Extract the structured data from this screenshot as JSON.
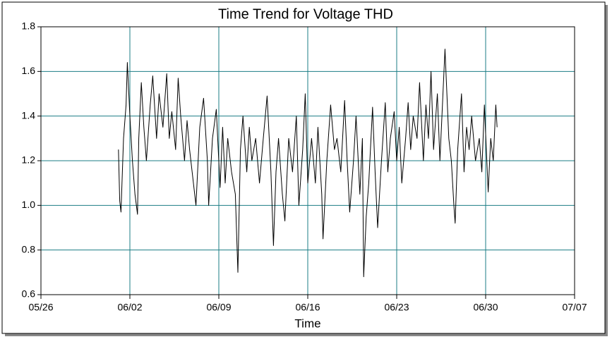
{
  "chart_data": {
    "type": "line",
    "title": "Time Trend for Voltage THD",
    "x_label": "Time",
    "color": "#000000",
    "grid": true,
    "grid_color": "#1b7d85",
    "xlim": [
      0,
      42
    ],
    "xticks": [
      {
        "value": 0,
        "label": "05/26"
      },
      {
        "value": 7,
        "label": "06/02"
      },
      {
        "value": 14,
        "label": "06/09"
      },
      {
        "value": 21,
        "label": "06/16"
      },
      {
        "value": 28,
        "label": "06/23"
      },
      {
        "value": 35,
        "label": "06/30"
      },
      {
        "value": 42,
        "label": "07/07"
      }
    ],
    "ylim": [
      0.6,
      1.8
    ],
    "yticks": [
      0.6,
      0.8,
      {
        "value": 1,
        "label": "1.0"
      },
      1.2,
      1.4,
      1.6,
      1.8
    ],
    "x": [
      6.1,
      6.2,
      6.3,
      6.5,
      6.7,
      6.8,
      7.0,
      7.2,
      7.4,
      7.6,
      7.7,
      7.9,
      8.1,
      8.3,
      8.6,
      8.8,
      9.1,
      9.3,
      9.6,
      9.9,
      10.1,
      10.3,
      10.6,
      10.8,
      11.0,
      11.3,
      11.5,
      11.7,
      11.9,
      12.2,
      12.5,
      12.8,
      13.1,
      13.2,
      13.5,
      13.8,
      14.1,
      14.3,
      14.5,
      14.7,
      15.0,
      15.3,
      15.5,
      15.7,
      15.9,
      16.2,
      16.4,
      16.6,
      16.9,
      17.2,
      17.5,
      17.8,
      18.1,
      18.3,
      18.5,
      18.7,
      19.0,
      19.2,
      19.5,
      19.8,
      20.1,
      20.3,
      20.6,
      20.8,
      21.0,
      21.3,
      21.6,
      21.8,
      22.1,
      22.2,
      22.5,
      22.8,
      23.1,
      23.3,
      23.6,
      23.9,
      24.1,
      24.3,
      24.6,
      24.8,
      25.1,
      25.3,
      25.4,
      25.6,
      25.8,
      26.1,
      26.3,
      26.5,
      26.8,
      27.1,
      27.3,
      27.5,
      27.8,
      28.0,
      28.2,
      28.4,
      28.7,
      28.9,
      29.1,
      29.3,
      29.6,
      29.8,
      30.1,
      30.3,
      30.5,
      30.7,
      30.9,
      31.2,
      31.4,
      31.6,
      31.8,
      32.1,
      32.3,
      32.5,
      32.6,
      32.8,
      33.1,
      33.3,
      33.5,
      33.7,
      33.9,
      34.2,
      34.5,
      34.7,
      34.9,
      35.2,
      35.4,
      35.6,
      35.8,
      35.9
    ],
    "values": [
      1.25,
      1.02,
      0.97,
      1.3,
      1.45,
      1.64,
      1.4,
      1.2,
      1.05,
      0.96,
      1.3,
      1.55,
      1.35,
      1.2,
      1.45,
      1.58,
      1.3,
      1.5,
      1.35,
      1.59,
      1.3,
      1.42,
      1.25,
      1.57,
      1.4,
      1.2,
      1.38,
      1.25,
      1.15,
      1.0,
      1.35,
      1.48,
      1.2,
      1.0,
      1.3,
      1.43,
      1.08,
      1.35,
      1.1,
      1.3,
      1.15,
      1.05,
      0.7,
      1.25,
      1.4,
      1.15,
      1.35,
      1.2,
      1.3,
      1.1,
      1.3,
      1.49,
      1.15,
      0.82,
      1.15,
      1.3,
      1.05,
      0.93,
      1.3,
      1.15,
      1.4,
      1.0,
      1.25,
      1.5,
      1.1,
      1.3,
      1.1,
      1.35,
      1.05,
      0.85,
      1.2,
      1.45,
      1.25,
      1.3,
      1.15,
      1.47,
      1.2,
      0.97,
      1.2,
      1.4,
      1.05,
      1.3,
      0.68,
      0.95,
      1.1,
      1.44,
      1.15,
      0.9,
      1.2,
      1.46,
      1.15,
      1.3,
      1.42,
      1.2,
      1.35,
      1.1,
      1.3,
      1.46,
      1.25,
      1.4,
      1.3,
      1.55,
      1.2,
      1.45,
      1.3,
      1.6,
      1.25,
      1.5,
      1.2,
      1.45,
      1.7,
      1.3,
      1.2,
      1.0,
      0.92,
      1.25,
      1.5,
      1.15,
      1.35,
      1.25,
      1.4,
      1.2,
      1.3,
      1.15,
      1.45,
      1.06,
      1.3,
      1.2,
      1.45,
      1.35
    ]
  }
}
